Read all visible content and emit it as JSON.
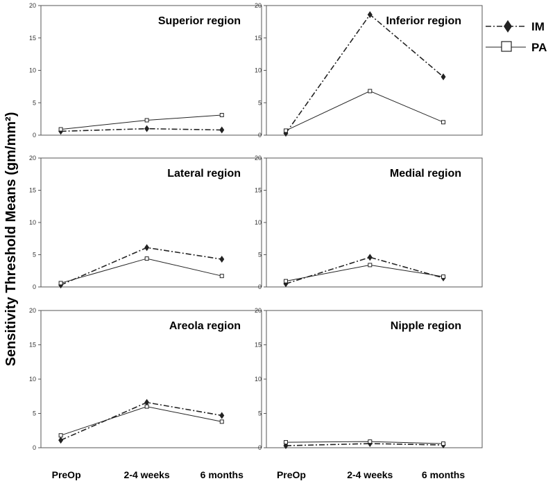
{
  "ylabel": "Sensitivity Threshold Means (gm/mm²)",
  "legend": [
    {
      "name": "IM",
      "marker": "filled-diamond",
      "line": "dash-dot"
    },
    {
      "name": "PA",
      "marker": "open-square",
      "line": "solid"
    }
  ],
  "colors": {
    "line": "#222222",
    "axis": "#555555",
    "text": "#000000"
  },
  "chart_data": [
    {
      "type": "line",
      "title": "Superior region",
      "categories": [
        "PreOp",
        "2-4 weeks",
        "6 months"
      ],
      "ylim": [
        0,
        20
      ],
      "yticks": [
        0,
        5,
        10,
        15,
        20
      ],
      "grid": false,
      "series": [
        {
          "name": "IM",
          "values": [
            0.6,
            1.0,
            0.8
          ]
        },
        {
          "name": "PA",
          "values": [
            0.9,
            2.3,
            3.1
          ]
        }
      ]
    },
    {
      "type": "line",
      "title": "Inferior region",
      "categories": [
        "PreOp",
        "2-4 weeks",
        "6 months"
      ],
      "ylim": [
        0,
        20
      ],
      "yticks": [
        0,
        5,
        10,
        15,
        20
      ],
      "grid": false,
      "series": [
        {
          "name": "IM",
          "values": [
            0.3,
            18.6,
            9.0
          ]
        },
        {
          "name": "PA",
          "values": [
            0.7,
            6.8,
            2.0
          ]
        }
      ]
    },
    {
      "type": "line",
      "title": "Lateral region",
      "categories": [
        "PreOp",
        "2-4 weeks",
        "6 months"
      ],
      "ylim": [
        0,
        20
      ],
      "yticks": [
        0,
        5,
        10,
        15,
        20
      ],
      "grid": false,
      "series": [
        {
          "name": "IM",
          "values": [
            0.3,
            6.1,
            4.3
          ]
        },
        {
          "name": "PA",
          "values": [
            0.6,
            4.4,
            1.7
          ]
        }
      ]
    },
    {
      "type": "line",
      "title": "Medial region",
      "categories": [
        "PreOp",
        "2-4 weeks",
        "6 months"
      ],
      "ylim": [
        0,
        20
      ],
      "yticks": [
        0,
        5,
        10,
        15,
        20
      ],
      "grid": false,
      "series": [
        {
          "name": "IM",
          "values": [
            0.5,
            4.6,
            1.4
          ]
        },
        {
          "name": "PA",
          "values": [
            0.9,
            3.4,
            1.6
          ]
        }
      ]
    },
    {
      "type": "line",
      "title": "Areola region",
      "categories": [
        "PreOp",
        "2-4 weeks",
        "6 months"
      ],
      "ylim": [
        0,
        20
      ],
      "yticks": [
        0,
        5,
        10,
        15,
        20
      ],
      "grid": false,
      "series": [
        {
          "name": "IM",
          "values": [
            1.1,
            6.6,
            4.7
          ]
        },
        {
          "name": "PA",
          "values": [
            1.8,
            6.0,
            3.8
          ]
        }
      ]
    },
    {
      "type": "line",
      "title": "Nipple region",
      "categories": [
        "PreOp",
        "2-4 weeks",
        "6 months"
      ],
      "ylim": [
        0,
        20
      ],
      "yticks": [
        0,
        5,
        10,
        15,
        20
      ],
      "grid": false,
      "series": [
        {
          "name": "IM",
          "values": [
            0.3,
            0.6,
            0.4
          ]
        },
        {
          "name": "PA",
          "values": [
            0.8,
            0.9,
            0.6
          ]
        }
      ]
    }
  ]
}
